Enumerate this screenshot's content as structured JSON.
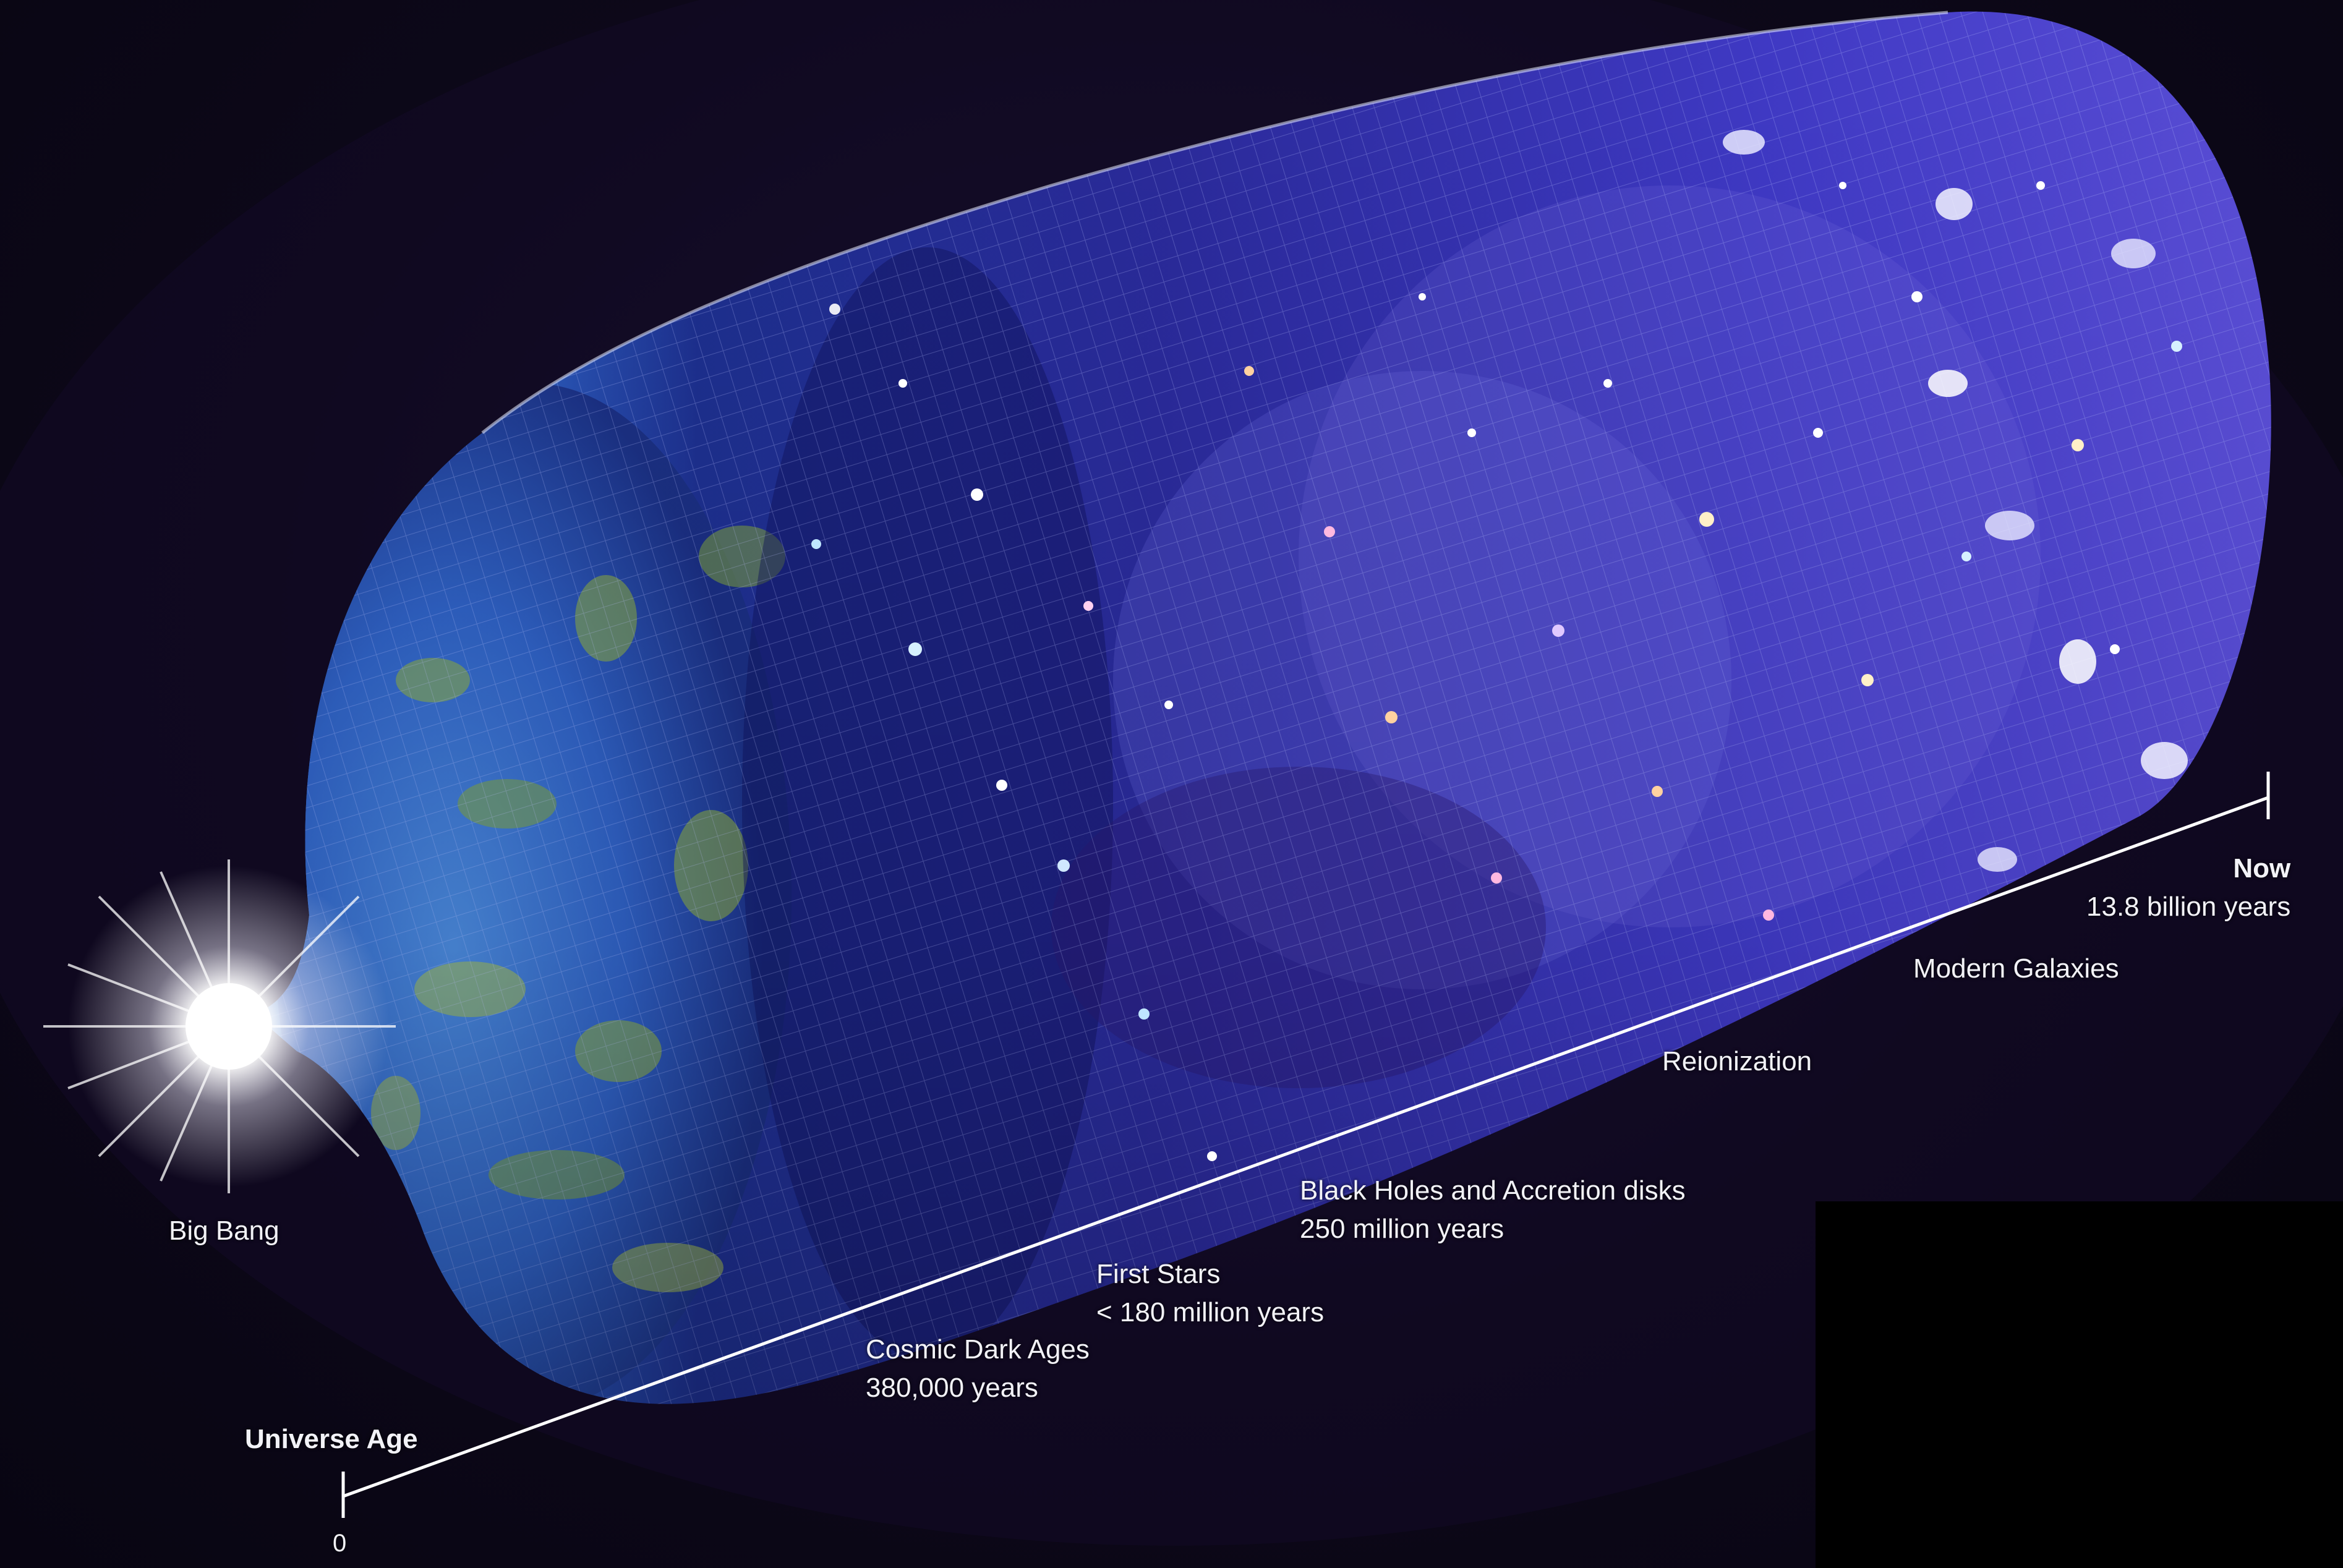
{
  "labels": {
    "big_bang": "Big Bang",
    "universe_age": "Universe Age",
    "zero": "0",
    "cosmic_dark_ages": {
      "title": "Cosmic Dark Ages",
      "age": "380,000 years"
    },
    "first_stars": {
      "title": "First Stars",
      "age": "< 180 million years"
    },
    "black_holes": {
      "title": "Black Holes and Accretion disks",
      "age": "250 million years"
    },
    "reionization": "Reionization",
    "modern_galaxies": "Modern Galaxies",
    "now": {
      "title": "Now",
      "age": "13.8 billion years"
    }
  },
  "colors": {
    "background": "#0b0617",
    "text": "#f2f2f7",
    "timeline": "#ffffff",
    "cmb_blue": "#2f6fd6",
    "cmb_green": "#8fae3a",
    "tube_blue": "#3e38c8",
    "tube_violet": "#5a4ad0",
    "big_bang_glow": "#ffffff"
  }
}
